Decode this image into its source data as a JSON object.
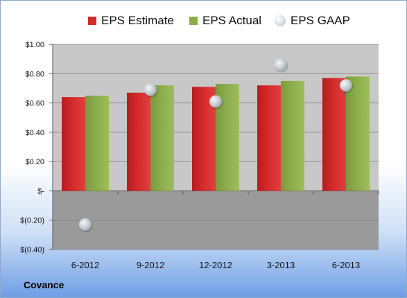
{
  "chart_data": {
    "type": "bar",
    "categories": [
      "6-2012",
      "9-2012",
      "12-2012",
      "3-2013",
      "6-2013"
    ],
    "series": [
      {
        "name": "EPS Estimate",
        "type": "bar",
        "values": [
          0.64,
          0.67,
          0.71,
          0.72,
          0.77
        ]
      },
      {
        "name": "EPS Actual",
        "type": "bar",
        "values": [
          0.65,
          0.72,
          0.73,
          0.75,
          0.78
        ]
      },
      {
        "name": "EPS GAAP",
        "type": "marker",
        "values": [
          -0.23,
          0.69,
          0.61,
          0.86,
          0.72
        ]
      }
    ],
    "ylim": [
      -0.4,
      1.0
    ],
    "yticks": [
      1.0,
      0.8,
      0.6,
      0.4,
      0.2,
      0,
      -0.2,
      -0.4
    ],
    "ytick_labels": [
      "$1.00",
      "$0.80",
      "$0.60",
      "$0.40",
      "$0.20",
      "$-",
      "$(0.20)",
      "$(0.40)"
    ],
    "grid": true,
    "legend_position": "top",
    "colors": {
      "estimate": "#d42a2a",
      "actual": "#8cad4b",
      "gaap": "#c8ced6",
      "plot_positive": "#c8c8c8",
      "plot_negative": "#9a9a9a"
    },
    "company": "Covance"
  }
}
